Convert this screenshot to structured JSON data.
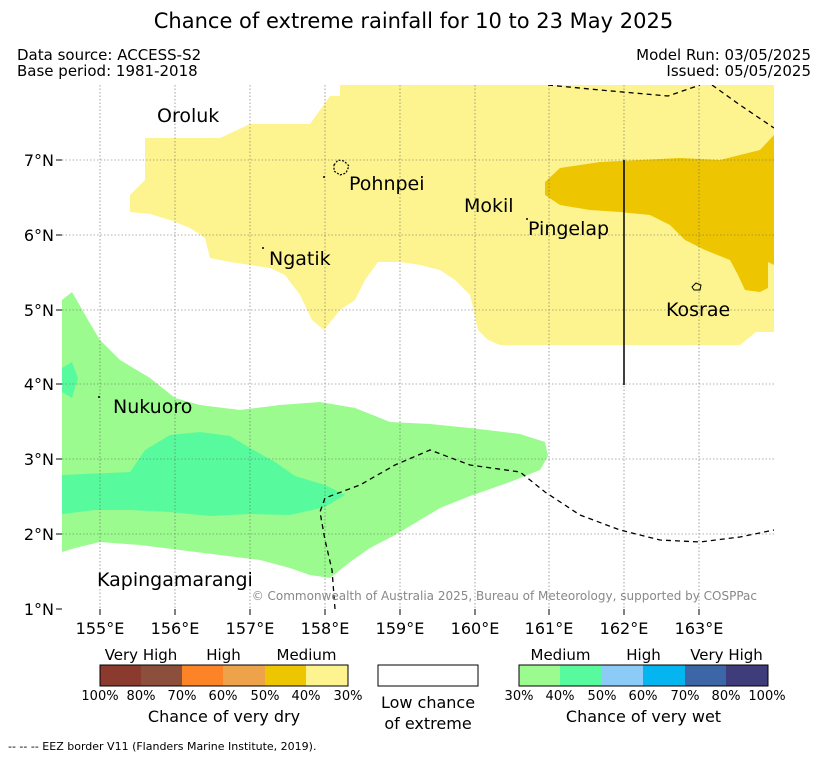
{
  "title": "Chance of extreme rainfall for 10 to 23 May 2025",
  "header": {
    "data_source": "Data source: ACCESS-S2",
    "base_period": "Base period: 1981-2018",
    "model_run": "Model Run: 03/05/2025",
    "issued": "Issued: 05/05/2025"
  },
  "map": {
    "lat_labels": [
      "7°N",
      "6°N",
      "5°N",
      "4°N",
      "3°N",
      "2°N",
      "1°N"
    ],
    "lon_labels": [
      "155°E",
      "156°E",
      "157°E",
      "158°E",
      "159°E",
      "160°E",
      "161°E",
      "162°E",
      "163°E"
    ],
    "places": {
      "oroluk": "Oroluk",
      "pohnpei": "Pohnpei",
      "mokil": "Mokil",
      "pingelap": "Pingelap",
      "ngatik": "Ngatik",
      "kosrae": "Kosrae",
      "nukuoro": "Nukuoro",
      "kapingamarangi": "Kapingamarangi"
    },
    "copyright": "© Commonwealth of Australia 2025, Bureau of Meteorology, supported by COSPPac",
    "colors": {
      "dry_medium_30": "#fdf48f",
      "dry_medium_40": "#edc500",
      "wet_medium_30": "#9bfb8e",
      "wet_medium_40": "#57fb9d"
    }
  },
  "legend": {
    "dry": {
      "very_high": "Very High",
      "high": "High",
      "medium": "Medium",
      "ticks": [
        "100%",
        "80%",
        "70%",
        "60%",
        "50%",
        "40%",
        "30%"
      ],
      "caption": "Chance of very dry",
      "colors": [
        "#8b3a2e",
        "#8b4f3b",
        "#fc8427",
        "#eea24a",
        "#edc500",
        "#fdf48f"
      ]
    },
    "low": {
      "line1": "Low chance",
      "line2": "of extreme"
    },
    "wet": {
      "medium": "Medium",
      "high": "High",
      "very_high": "Very High",
      "ticks": [
        "30%",
        "40%",
        "50%",
        "60%",
        "70%",
        "80%",
        "100%"
      ],
      "caption": "Chance of very wet",
      "colors": [
        "#9bfb8e",
        "#57fb9d",
        "#8ccbf8",
        "#05b5f0",
        "#3d66a6",
        "#3e3c7b"
      ]
    }
  },
  "footnote": "--  --  -- EEZ border V11 (Flanders Marine Institute, 2019)."
}
